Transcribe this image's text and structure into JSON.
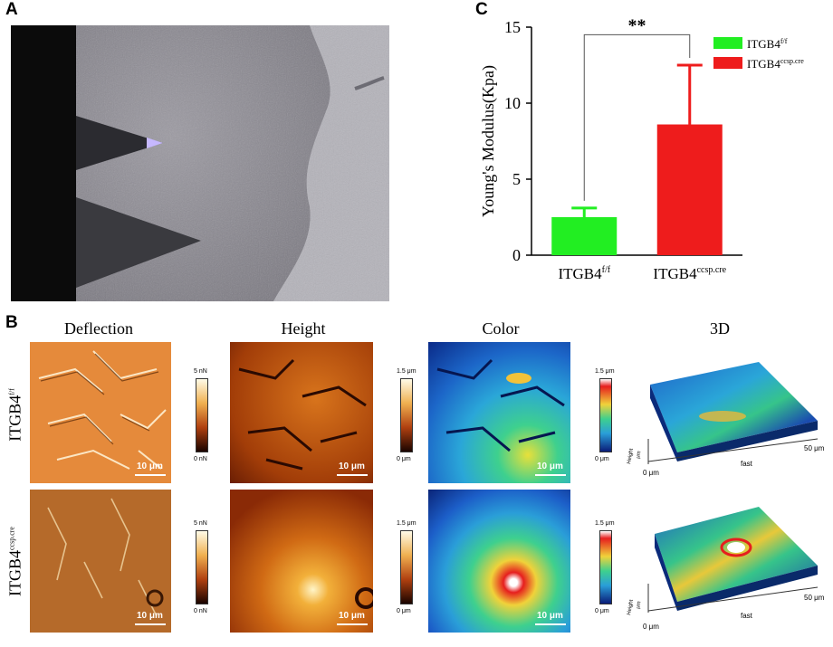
{
  "panels": {
    "a": "A",
    "b": "B",
    "c": "C"
  },
  "panel_b": {
    "columns": [
      "Deflection",
      "Height",
      "Color",
      "3D"
    ],
    "rows": [
      {
        "base": "ITGB4",
        "sup": "f/f"
      },
      {
        "base": "ITGB4",
        "sup": "ccsp.cre"
      }
    ],
    "scalebar": "10 μm",
    "colorbars": {
      "deflection": {
        "top": "5 nN",
        "bottom": "0 nN"
      },
      "height": {
        "top": "1.5 μm",
        "bottom": "0 μm"
      },
      "color": {
        "top": "1.5 μm",
        "bottom": "0 μm"
      }
    },
    "threed": {
      "xlabel": "fast",
      "xend": "50 μm",
      "origin": "0 μm",
      "zlabel": "Height",
      "zunit": "μm"
    }
  },
  "chart_data": {
    "type": "bar",
    "categories": [
      "ITGB4f/f",
      "ITGB4ccsp.cre"
    ],
    "category_labels": [
      {
        "base": "ITGB4",
        "sup": "f/f"
      },
      {
        "base": "ITGB4",
        "sup": "ccsp.cre"
      }
    ],
    "values": [
      2.5,
      8.6
    ],
    "errors": [
      0.6,
      3.9
    ],
    "colors": [
      "#22ee22",
      "#ee1c1c"
    ],
    "ylabel": "Young's Modulus(Kpa)",
    "ylim": [
      0,
      15
    ],
    "yticks": [
      0,
      5,
      10,
      15
    ],
    "significance": "**",
    "legend": {
      "placement": "top-right",
      "entries": [
        {
          "base": "ITGB4",
          "sup": "f/f"
        },
        {
          "base": "ITGB4",
          "sup": "ccsp.cre"
        }
      ]
    }
  }
}
